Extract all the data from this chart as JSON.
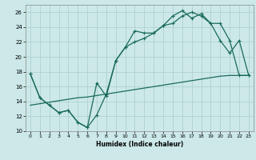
{
  "title": "",
  "xlabel": "Humidex (Indice chaleur)",
  "background_color": "#cce8e8",
  "line_color": "#1a6b5a",
  "xlim": [
    -0.5,
    23.5
  ],
  "ylim": [
    10,
    27
  ],
  "xticks": [
    0,
    1,
    2,
    3,
    4,
    5,
    6,
    7,
    8,
    9,
    10,
    11,
    12,
    13,
    14,
    15,
    16,
    17,
    18,
    19,
    20,
    21,
    22,
    23
  ],
  "yticks": [
    10,
    12,
    14,
    16,
    18,
    20,
    22,
    24,
    26
  ],
  "line1_x": [
    0,
    1,
    2,
    3,
    4,
    5,
    6,
    7,
    8,
    9,
    10,
    11,
    12,
    13,
    14,
    15,
    16,
    17,
    18,
    19,
    20,
    21,
    22,
    23
  ],
  "line1_y": [
    17.7,
    14.5,
    13.5,
    12.5,
    12.8,
    11.2,
    10.5,
    16.5,
    14.7,
    19.5,
    21.3,
    23.5,
    23.2,
    23.2,
    24.2,
    25.5,
    26.2,
    25.2,
    25.8,
    24.5,
    22.2,
    20.5,
    22.2,
    17.5
  ],
  "line2_x": [
    0,
    1,
    2,
    3,
    4,
    5,
    6,
    7,
    8,
    9,
    10,
    11,
    12,
    13,
    14,
    15,
    16,
    17,
    18,
    19,
    20,
    21,
    22,
    23
  ],
  "line2_y": [
    17.7,
    14.5,
    13.5,
    12.5,
    12.8,
    11.2,
    10.5,
    12.2,
    15.0,
    19.5,
    21.3,
    22.0,
    22.5,
    23.2,
    24.2,
    24.5,
    25.5,
    26.0,
    25.5,
    24.5,
    24.5,
    22.2,
    17.5,
    17.5
  ],
  "line3_x": [
    0,
    1,
    2,
    3,
    4,
    5,
    6,
    7,
    8,
    9,
    10,
    11,
    12,
    13,
    14,
    15,
    16,
    17,
    18,
    19,
    20,
    21,
    22,
    23
  ],
  "line3_y": [
    13.5,
    13.7,
    13.9,
    14.1,
    14.3,
    14.5,
    14.6,
    14.8,
    15.0,
    15.2,
    15.4,
    15.6,
    15.8,
    16.0,
    16.2,
    16.4,
    16.6,
    16.8,
    17.0,
    17.2,
    17.4,
    17.5,
    17.5,
    17.5
  ]
}
